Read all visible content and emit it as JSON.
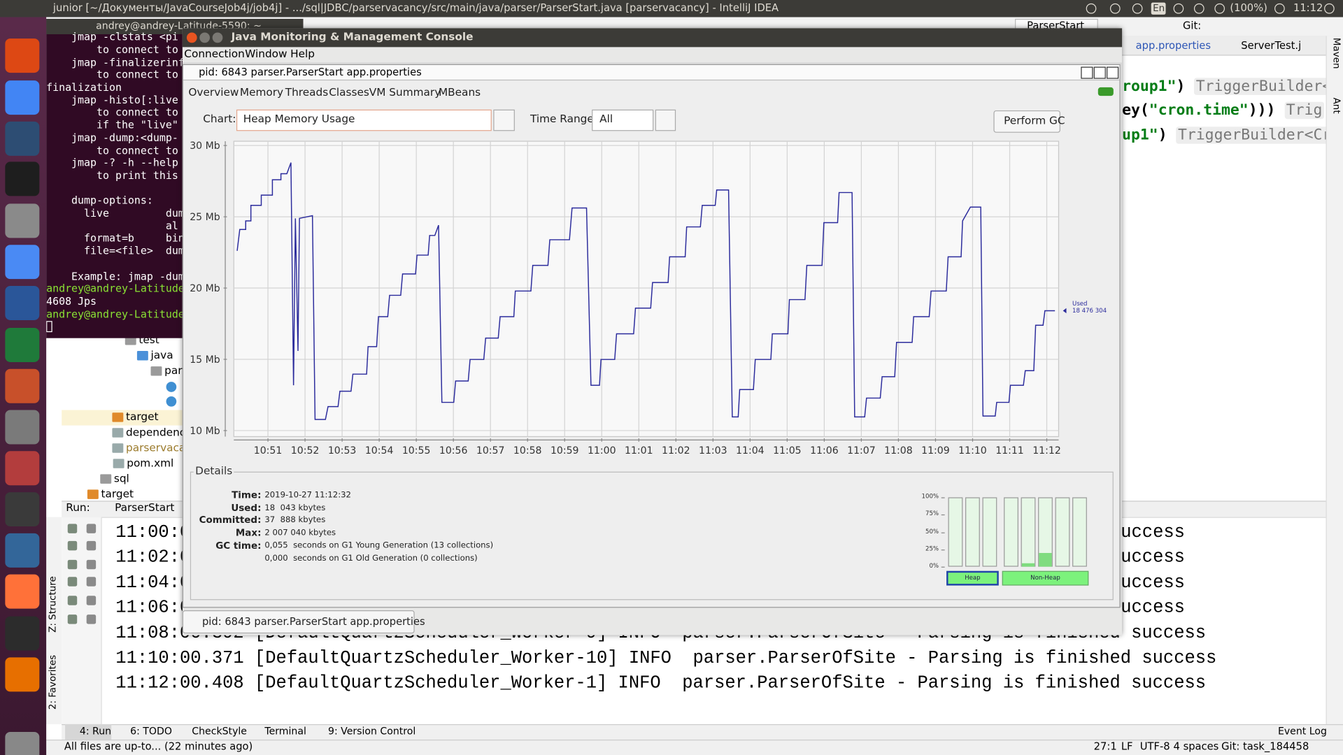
{
  "desktop": {
    "title": "junior [~/Документы/JavaCourseJob4j/job4j] - .../sql|JDBC/parservacancy/src/main/java/parser/ParserStart.java [parservacancy] - IntelliJ IDEA",
    "keyboard": "En",
    "battery": "(100%)",
    "clock": "11:12"
  },
  "terminal": {
    "title": "andrey@andrey-Latitude-5590: ~",
    "help": [
      "    jmap -clstats <pi",
      "        to connect to",
      "    jmap -finalizerinf",
      "        to connect to",
      "finalization",
      "    jmap -histo[:live",
      "        to connect to",
      "        if the \"live\"",
      "    jmap -dump:<dump-",
      "        to connect to",
      "    jmap -? -h --help",
      "        to print this"
    ],
    "dump_options": [
      "    dump-options:",
      "      live         dum",
      "                   al",
      "      format=b     bin",
      "      file=<file>  dum"
    ],
    "example": "    Example: jmap -dum",
    "session": [
      {
        "prompt": "andrey@andrey-Latitude"
      },
      {
        "output": "4608 Jps"
      },
      {
        "prompt": "andrey@andrey-Latitude"
      }
    ]
  },
  "ide": {
    "run_config": "ParserStart",
    "git": "Git:",
    "tabs": [
      "app.properties",
      "ServerTest.j"
    ],
    "code": [
      [
        {
          "text": "roup1\"",
          "kind": "string"
        },
        {
          "text": ") ",
          "kind": "plain"
        },
        {
          "text": "TriggerBuilder<Tr",
          "kind": "hint"
        }
      ],
      [
        {
          "text": "ey(",
          "kind": "plain"
        },
        {
          "text": "\"cron.time\"",
          "kind": "string"
        },
        {
          "text": "))) ",
          "kind": "plain"
        },
        {
          "text": "Trig",
          "kind": "hint"
        }
      ],
      [
        {
          "text": "up1\"",
          "kind": "string"
        },
        {
          "text": ") ",
          "kind": "plain"
        },
        {
          "text": "TriggerBuilder<Cron",
          "kind": "hint"
        }
      ]
    ],
    "side_tabs": [
      "Maven",
      "Ant"
    ],
    "tree": [
      {
        "label": "test",
        "kind": "folder"
      },
      {
        "label": "java",
        "kind": "source"
      },
      {
        "label": "par",
        "kind": "package"
      },
      {
        "label": "target",
        "kind": "excluded"
      },
      {
        "label": "dependenc",
        "kind": "file"
      },
      {
        "label": "parservacan",
        "kind": "ignored"
      },
      {
        "label": "pom.xml",
        "kind": "file"
      },
      {
        "label": "sql",
        "kind": "folder"
      },
      {
        "label": "target",
        "kind": "excluded"
      }
    ],
    "run": {
      "label": "Run:",
      "tab": "ParserStart",
      "log": [
        {
          "start": "11:00:0",
          "end": "success"
        },
        {
          "start": "11:02:0",
          "end": "success"
        },
        {
          "start": "11:04:0",
          "end": "success"
        },
        {
          "start": "11:06:0",
          "end": "success"
        },
        {
          "line": "11:08:00.392 [DefaultQuartzScheduler_Worker-9] INFO  parser.ParserOfSite - Parsing is finished success"
        },
        {
          "line": "11:10:00.371 [DefaultQuartzScheduler_Worker-10] INFO  parser.ParserOfSite - Parsing is finished success"
        },
        {
          "line": "11:12:00.408 [DefaultQuartzScheduler_Worker-1] INFO  parser.ParserOfSite - Parsing is finished success"
        }
      ]
    },
    "left_tabs": [
      "Z: Structure",
      "2: Favorites"
    ],
    "tool_tabs": [
      "4: Run",
      "6: TODO",
      "CheckStyle",
      "Terminal",
      "9: Version Control"
    ],
    "event_log": "Event Log",
    "status": {
      "message": "All files are up-to... (22 minutes ago)",
      "items": [
        "27:1",
        "LF",
        "UTF-8",
        "4 spaces",
        "Git: task_184458"
      ]
    }
  },
  "jconsole": {
    "title": "Java Monitoring & Management Console",
    "menu": [
      "Connection",
      "Window",
      "Help"
    ],
    "frame_title": "pid: 6843 parser.ParserStart app.properties",
    "tabs": [
      "Overview",
      "Memory",
      "Threads",
      "Classes",
      "VM Summary",
      "MBeans"
    ],
    "chart_label": "Chart:",
    "chart_choice": "Heap Memory Usage",
    "range_label": "Time Range:",
    "range_choice": "All",
    "gc_button": "Perform GC",
    "chart": {
      "type": "line",
      "color": "#2b2b9c",
      "grid": true,
      "x": [
        650.17,
        650.24,
        650.4,
        650.4,
        650.54,
        650.54,
        650.82,
        650.82,
        651.12,
        651.12,
        651.35,
        651.35,
        651.51,
        651.62,
        651.69,
        651.74,
        651.81,
        651.85,
        652.2,
        652.27,
        652.55,
        652.62,
        652.89,
        652.94,
        653.24,
        653.29,
        653.66,
        653.7,
        653.93,
        653.98,
        654.23,
        654.28,
        654.58,
        654.63,
        654.98,
        655.02,
        655.32,
        655.36,
        655.5,
        655.6,
        655.69,
        656.01,
        656.06,
        656.4,
        656.45,
        656.82,
        656.87,
        657.21,
        657.26,
        657.63,
        657.67,
        658.09,
        658.14,
        658.55,
        658.6,
        659.13,
        659.2,
        659.59,
        659.71,
        659.94,
        659.98,
        660.35,
        660.4,
        660.86,
        660.91,
        661.32,
        661.37,
        661.79,
        661.83,
        662.25,
        662.29,
        662.66,
        662.71,
        663.06,
        663.1,
        663.42,
        663.52,
        663.68,
        663.72,
        664.09,
        664.14,
        664.56,
        664.6,
        665.02,
        665.06,
        665.48,
        665.53,
        665.94,
        665.99,
        666.36,
        666.4,
        666.75,
        666.82,
        667.09,
        667.14,
        667.51,
        667.56,
        667.9,
        667.95,
        668.37,
        668.41,
        668.83,
        668.88,
        669.29,
        669.34,
        669.69,
        669.73,
        669.94,
        670.22,
        670.28,
        670.61,
        670.65,
        670.98,
        671.02,
        671.37,
        671.42,
        671.65,
        671.7,
        671.9,
        671.95,
        672.22
      ],
      "values": [
        22.61,
        24.11,
        24.11,
        24.71,
        24.71,
        25.8,
        25.8,
        26.52,
        26.52,
        27.6,
        27.6,
        28.02,
        28.02,
        28.8,
        13.18,
        24.89,
        15.59,
        24.89,
        25.08,
        10.78,
        10.78,
        11.68,
        11.68,
        12.76,
        12.76,
        13.96,
        13.96,
        15.89,
        15.89,
        17.99,
        17.99,
        19.49,
        19.49,
        20.99,
        20.99,
        22.31,
        22.31,
        23.69,
        23.69,
        24.41,
        11.98,
        11.98,
        13.48,
        13.48,
        14.99,
        14.99,
        16.49,
        16.49,
        17.99,
        17.99,
        19.79,
        19.79,
        21.59,
        21.59,
        23.39,
        23.39,
        25.62,
        25.62,
        13.18,
        13.18,
        14.99,
        14.99,
        16.79,
        16.79,
        18.59,
        18.59,
        20.39,
        20.39,
        22.19,
        22.19,
        24.29,
        24.29,
        25.8,
        25.8,
        26.88,
        26.88,
        10.96,
        10.96,
        12.88,
        12.88,
        14.99,
        14.99,
        16.79,
        16.79,
        19.19,
        19.19,
        21.59,
        21.59,
        24.59,
        24.59,
        26.7,
        26.7,
        10.96,
        10.96,
        12.28,
        12.28,
        13.78,
        13.78,
        16.19,
        16.19,
        17.99,
        17.99,
        19.79,
        19.79,
        22.19,
        22.19,
        24.71,
        25.68,
        25.68,
        11.02,
        11.02,
        11.98,
        11.98,
        13.18,
        13.18,
        14.2,
        14.2,
        17.39,
        17.39,
        18.41,
        18.41
      ],
      "xlim": [
        650.08,
        672.32
      ],
      "ylim": [
        9.58,
        30.3
      ],
      "xticks": [
        {
          "value": 651,
          "label": "10:51"
        },
        {
          "value": 652,
          "label": "10:52"
        },
        {
          "value": 653,
          "label": "10:53"
        },
        {
          "value": 654,
          "label": "10:54"
        },
        {
          "value": 655,
          "label": "10:55"
        },
        {
          "value": 656,
          "label": "10:56"
        },
        {
          "value": 657,
          "label": "10:57"
        },
        {
          "value": 658,
          "label": "10:58"
        },
        {
          "value": 659,
          "label": "10:59"
        },
        {
          "value": 660,
          "label": "11:00"
        },
        {
          "value": 661,
          "label": "11:01"
        },
        {
          "value": 662,
          "label": "11:02"
        },
        {
          "value": 663,
          "label": "11:03"
        },
        {
          "value": 664,
          "label": "11:04"
        },
        {
          "value": 665,
          "label": "11:05"
        },
        {
          "value": 666,
          "label": "11:06"
        },
        {
          "value": 667,
          "label": "11:07"
        },
        {
          "value": 668,
          "label": "11:08"
        },
        {
          "value": 669,
          "label": "11:09"
        },
        {
          "value": 670,
          "label": "11:10"
        },
        {
          "value": 671,
          "label": "11:11"
        },
        {
          "value": 672,
          "label": "11:12"
        }
      ],
      "yticks": [
        {
          "value": 10,
          "label": "10 Mb"
        },
        {
          "value": 15,
          "label": "15 Mb"
        },
        {
          "value": 20,
          "label": "20 Mb"
        },
        {
          "value": 25,
          "label": "25 Mb"
        },
        {
          "value": 30,
          "label": "30 Mb"
        }
      ],
      "marker": {
        "label": "Used",
        "value": "18 476 304"
      }
    },
    "details": {
      "legend": "Details",
      "rows": [
        {
          "label": "Time:",
          "value": "2019-10-27 11:12:32"
        },
        {
          "label": "Used:",
          "value": "18  043 kbytes"
        },
        {
          "label": "Committed:",
          "value": "37  888 kbytes"
        },
        {
          "label": "Max:",
          "value": "2 007 040 kbytes"
        },
        {
          "label": "GC time:",
          "value": "0,055  seconds on G1 Young Generation (13 collections)"
        }
      ],
      "gc_extra": "0,000  seconds on G1 Old Generation (0 collections)"
    },
    "pools": {
      "color": "#7fdc7f",
      "ylim": [
        0,
        100
      ],
      "yticks": [
        {
          "value": 100,
          "label": "100%"
        },
        {
          "value": 75,
          "label": "75%"
        },
        {
          "value": 50,
          "label": "50%"
        },
        {
          "value": 25,
          "label": "25%"
        },
        {
          "value": 0,
          "label": "0%"
        }
      ],
      "groups": [
        {
          "name": "Heap",
          "values": [
            0,
            0,
            0
          ]
        },
        {
          "name": "Non-Heap",
          "values": [
            0,
            5,
            20,
            0,
            0
          ]
        }
      ]
    },
    "taskbar": "pid: 6843 parser.ParserStart app.properties"
  }
}
